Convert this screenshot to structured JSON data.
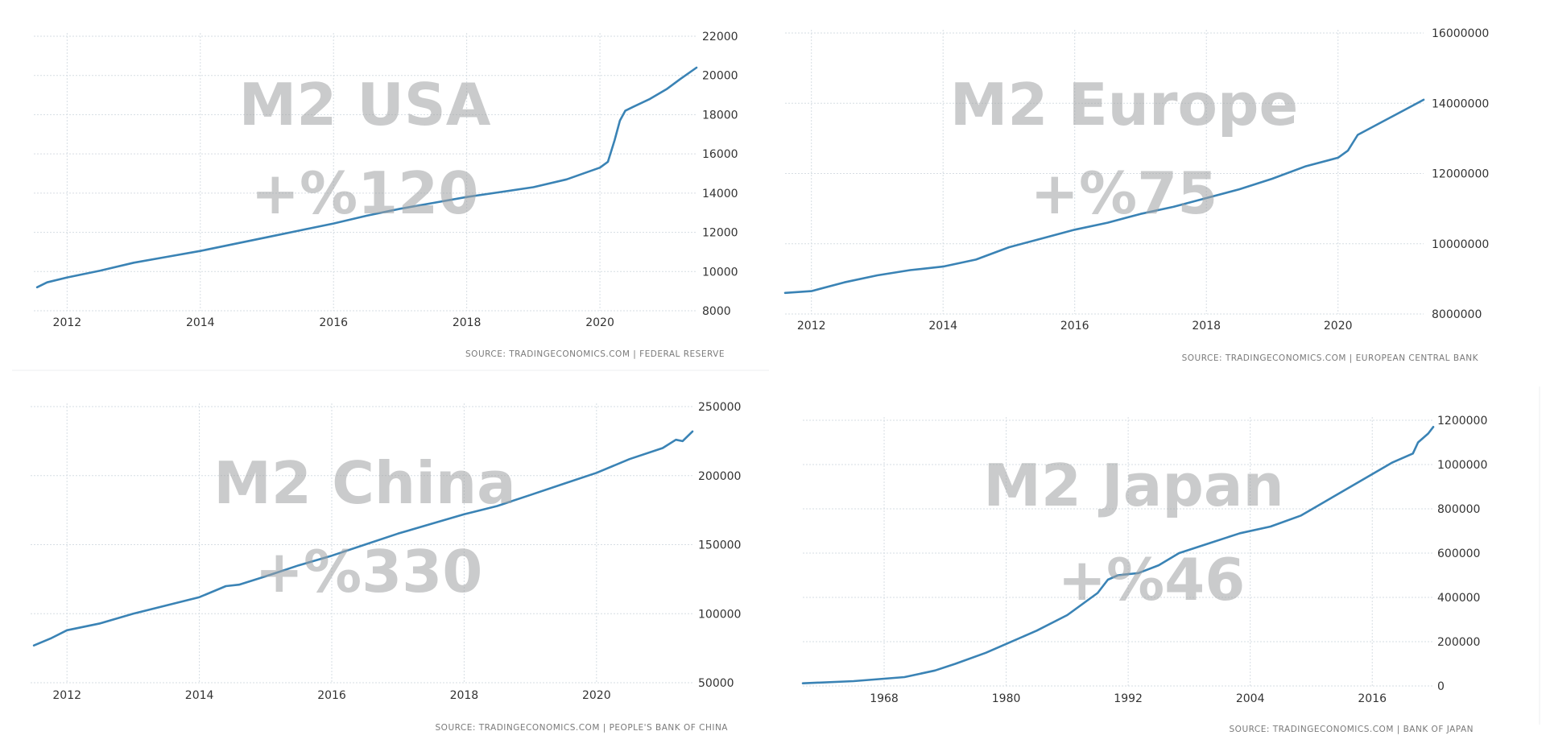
{
  "colors": {
    "line": "#3a83b5",
    "grid": "#d6dde3",
    "watermark": "#9fa1a3"
  },
  "chart_data": [
    {
      "id": "usa",
      "type": "line",
      "title": "M2 USA",
      "subtitle": "+%120",
      "source": "SOURCE: TRADINGECONOMICS.COM  |  FEDERAL RESERVE",
      "xlim": [
        2011.5,
        2021.45
      ],
      "ylim": [
        8000,
        22000
      ],
      "x_ticks": [
        2012,
        2014,
        2016,
        2018,
        2020
      ],
      "y_ticks": [
        8000,
        10000,
        12000,
        14000,
        16000,
        18000,
        20000,
        22000
      ],
      "y_tick_labels": [
        "8000",
        "10000",
        "12000",
        "14000",
        "16000",
        "18000",
        "20000",
        "22000"
      ],
      "series": [
        {
          "x": [
            2011.55,
            2011.7,
            2012.0,
            2012.5,
            2013.0,
            2013.5,
            2014.0,
            2014.5,
            2015.0,
            2015.5,
            2016.0,
            2016.5,
            2017.0,
            2017.5,
            2018.0,
            2018.5,
            2019.0,
            2019.5,
            2020.0,
            2020.12,
            2020.22,
            2020.3,
            2020.38,
            2020.5,
            2020.75,
            2021.0,
            2021.2,
            2021.45
          ],
          "y": [
            9200,
            9450,
            9700,
            10050,
            10450,
            10750,
            11050,
            11400,
            11750,
            12100,
            12450,
            12850,
            13200,
            13500,
            13800,
            14050,
            14300,
            14700,
            15300,
            15600,
            16700,
            17700,
            18200,
            18400,
            18800,
            19300,
            19800,
            20400
          ]
        }
      ]
    },
    {
      "id": "europe",
      "type": "line",
      "title": "M2 Europe",
      "subtitle": "+%75",
      "source": "SOURCE: TRADINGECONOMICS.COM  |  EUROPEAN CENTRAL BANK",
      "xlim": [
        2011.6,
        2021.3
      ],
      "ylim": [
        8000000,
        16000000
      ],
      "x_ticks": [
        2012,
        2014,
        2016,
        2018,
        2020
      ],
      "y_ticks": [
        8000000,
        10000000,
        12000000,
        14000000,
        16000000
      ],
      "y_tick_labels": [
        "8000000",
        "10000000",
        "12000000",
        "14000000",
        "16000000"
      ],
      "series": [
        {
          "x": [
            2011.6,
            2012.0,
            2012.5,
            2013.0,
            2013.5,
            2014.0,
            2014.5,
            2015.0,
            2015.5,
            2016.0,
            2016.5,
            2017.0,
            2017.5,
            2018.0,
            2018.5,
            2019.0,
            2019.5,
            2020.0,
            2020.15,
            2020.3,
            2020.6,
            2021.0,
            2021.3
          ],
          "y": [
            8600000,
            8650000,
            8900000,
            9100000,
            9250000,
            9350000,
            9550000,
            9900000,
            10150000,
            10400000,
            10600000,
            10850000,
            11050000,
            11300000,
            11550000,
            11850000,
            12200000,
            12450000,
            12650000,
            13100000,
            13400000,
            13800000,
            14100000
          ]
        }
      ]
    },
    {
      "id": "china",
      "type": "line",
      "title": "M2 China",
      "subtitle": "+%330",
      "source": "SOURCE: TRADINGECONOMICS.COM  |  PEOPLE'S BANK OF CHINA",
      "xlim": [
        2011.45,
        2021.45
      ],
      "ylim": [
        50000,
        250000
      ],
      "x_ticks": [
        2012,
        2014,
        2016,
        2018,
        2020
      ],
      "y_ticks": [
        50000,
        100000,
        150000,
        200000,
        250000
      ],
      "y_tick_labels": [
        "50000",
        "100000",
        "150000",
        "200000",
        "250000"
      ],
      "series": [
        {
          "x": [
            2011.5,
            2011.75,
            2012.0,
            2012.5,
            2013.0,
            2013.5,
            2014.0,
            2014.4,
            2014.6,
            2015.0,
            2015.5,
            2016.0,
            2016.5,
            2017.0,
            2017.5,
            2018.0,
            2018.5,
            2019.0,
            2019.5,
            2020.0,
            2020.5,
            2021.0,
            2021.2,
            2021.3,
            2021.45
          ],
          "y": [
            77000,
            82000,
            88000,
            93000,
            100000,
            106000,
            112000,
            120000,
            121000,
            127000,
            135000,
            142000,
            150000,
            158000,
            165000,
            172000,
            178000,
            186000,
            194000,
            202000,
            212000,
            220000,
            226000,
            225000,
            232000
          ]
        }
      ]
    },
    {
      "id": "japan",
      "type": "line",
      "title": "M2 Japan",
      "subtitle": "+%46",
      "source": "SOURCE: TRADINGECONOMICS.COM  |  BANK OF JAPAN",
      "xlim": [
        1960,
        2022
      ],
      "ylim": [
        0,
        1200000
      ],
      "x_ticks": [
        1968,
        1980,
        1992,
        2004,
        2016
      ],
      "y_ticks": [
        0,
        200000,
        400000,
        600000,
        800000,
        1000000,
        1200000
      ],
      "y_tick_labels": [
        "0",
        "200000",
        "400000",
        "600000",
        "800000",
        "1000000",
        "1200000"
      ],
      "series": [
        {
          "x": [
            1960,
            1965,
            1970,
            1973,
            1975,
            1978,
            1980,
            1983,
            1986,
            1989,
            1990,
            1991,
            1993,
            1995,
            1997,
            2000,
            2003,
            2006,
            2009,
            2012,
            2015,
            2018,
            2020,
            2020.5,
            2021.5,
            2022
          ],
          "y": [
            12000,
            22000,
            40000,
            70000,
            100000,
            150000,
            190000,
            250000,
            320000,
            420000,
            480000,
            500000,
            510000,
            545000,
            600000,
            645000,
            690000,
            720000,
            770000,
            850000,
            930000,
            1010000,
            1050000,
            1100000,
            1140000,
            1170000
          ]
        }
      ]
    }
  ]
}
